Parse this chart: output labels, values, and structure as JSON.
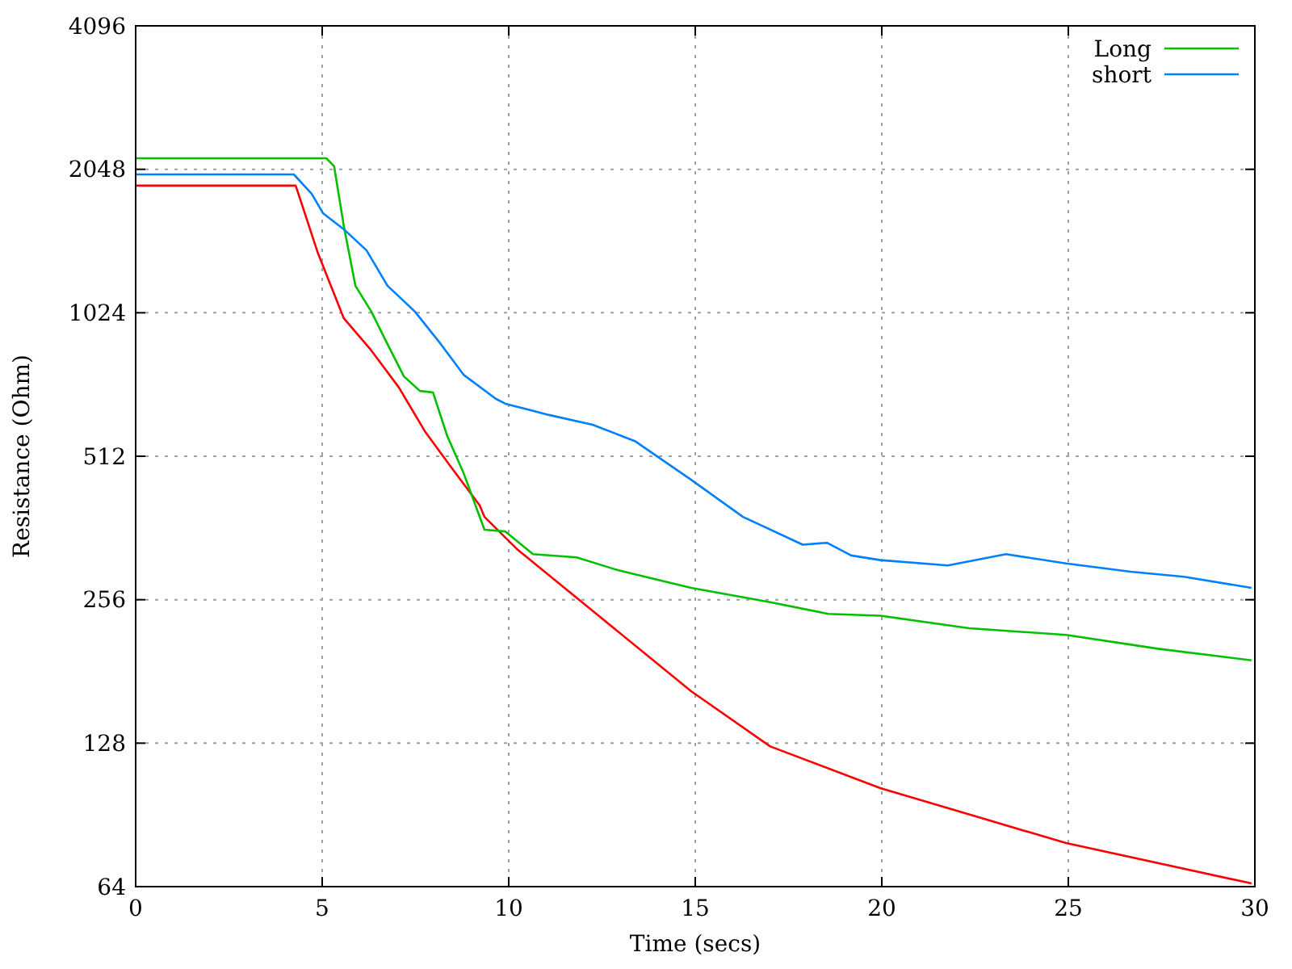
{
  "chart_data": {
    "type": "line",
    "xlabel": "Time (secs)",
    "ylabel": "Resistance (Ohm)",
    "xlim": [
      0,
      30
    ],
    "xticks": [
      0,
      5,
      10,
      15,
      20,
      25,
      30
    ],
    "ylim": [
      64,
      4096
    ],
    "yticks": [
      64,
      128,
      256,
      512,
      1024,
      2048,
      4096
    ],
    "log": "y",
    "grid": true,
    "legend": "top right",
    "line_style": "solid",
    "marker": "none",
    "series": [
      {
        "color": "#ff0000",
        "x": [
          0,
          4.29,
          4.89,
          5.58,
          6.32,
          7.06,
          7.75,
          8.48,
          9.22,
          9.35,
          10.22,
          14.89,
          17.01,
          19.96,
          24.94,
          29.91
        ],
        "values": [
          1893,
          1893,
          1363,
          997,
          853,
          713,
          578,
          483,
          404,
          382,
          327,
          164.5,
          126,
          103,
          79,
          65
        ]
      },
      {
        "name": "Long",
        "color": "#00c000",
        "x": [
          0,
          5.11,
          5.32,
          5.58,
          5.89,
          6.32,
          6.75,
          7.19,
          7.62,
          7.97,
          8.35,
          8.79,
          9.35,
          9.91,
          10.65,
          11.82,
          12.94,
          14.89,
          17.01,
          18.57,
          19.96,
          22.34,
          24.94,
          27.4,
          29.91
        ],
        "values": [
          2160,
          2160,
          2078,
          1556,
          1167,
          1029,
          880,
          753,
          702,
          697,
          565,
          472,
          359,
          356,
          319,
          314,
          295,
          271,
          253,
          239,
          237,
          223,
          216,
          202,
          191
        ]
      },
      {
        "name": "short",
        "color": "#0080ff",
        "x": [
          0,
          4.24,
          4.72,
          5.02,
          5.58,
          6.19,
          6.75,
          7.49,
          8.18,
          8.79,
          9.65,
          9.91,
          11.08,
          12.25,
          13.38,
          14.89,
          16.28,
          17.88,
          18.53,
          19.18,
          19.96,
          21.77,
          23.33,
          24.94,
          26.67,
          28.1,
          29.91
        ],
        "values": [
          1998,
          1998,
          1819,
          1657,
          1533,
          1384,
          1167,
          1029,
          880,
          759,
          676,
          660,
          625,
          596,
          551,
          457,
          382,
          334,
          337,
          317,
          310,
          302,
          319,
          305,
          293,
          286,
          271
        ]
      }
    ]
  }
}
